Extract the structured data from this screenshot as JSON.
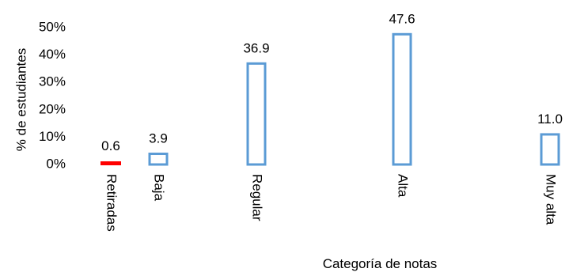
{
  "chart_data": {
    "type": "bar",
    "title": "",
    "xlabel": "Categoría de notas",
    "ylabel": "% de estudiantes",
    "ylim": [
      0,
      50
    ],
    "yticks": [
      "0%",
      "10%",
      "20%",
      "30%",
      "40%",
      "50%"
    ],
    "grid": false,
    "categories": [
      "Retiradas",
      "Baja",
      "Regular",
      "Alta",
      "Muy alta"
    ],
    "values": [
      0.6,
      3.9,
      36.9,
      47.6,
      11.0
    ],
    "data_labels": [
      "0.6",
      "3.9",
      "36.9",
      "47.6",
      "11.0"
    ],
    "colors": {
      "highlight": "#ff0000",
      "outline": "#5b9bd5"
    }
  }
}
